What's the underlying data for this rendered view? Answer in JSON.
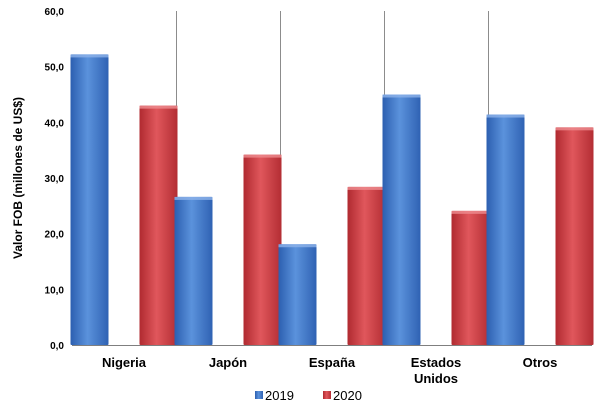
{
  "chart_data": {
    "type": "bar",
    "categories": [
      "Nigeria",
      "Japón",
      "España",
      "Estados Unidos",
      "Otros"
    ],
    "category_lines": [
      [
        "Nigeria"
      ],
      [
        "Japón"
      ],
      [
        "España"
      ],
      [
        "Estados",
        "Unidos"
      ],
      [
        "Otros"
      ]
    ],
    "series": [
      {
        "name": "2019",
        "values": [
          52.2,
          26.6,
          18.1,
          45.0,
          41.4
        ],
        "color": "#4a7ed0"
      },
      {
        "name": "2020",
        "values": [
          43.0,
          34.2,
          28.4,
          24.1,
          39.1
        ],
        "color": "#d0444a"
      }
    ],
    "title": "",
    "xlabel": "",
    "ylabel": "Valor FOB (millones de US$)",
    "ylim": [
      0,
      60
    ],
    "yticks": [
      "0,0",
      "10,0",
      "20,0",
      "30,0",
      "40,0",
      "50,0",
      "60,0"
    ],
    "grid": "vertical separators",
    "legend": "bottom-center"
  }
}
